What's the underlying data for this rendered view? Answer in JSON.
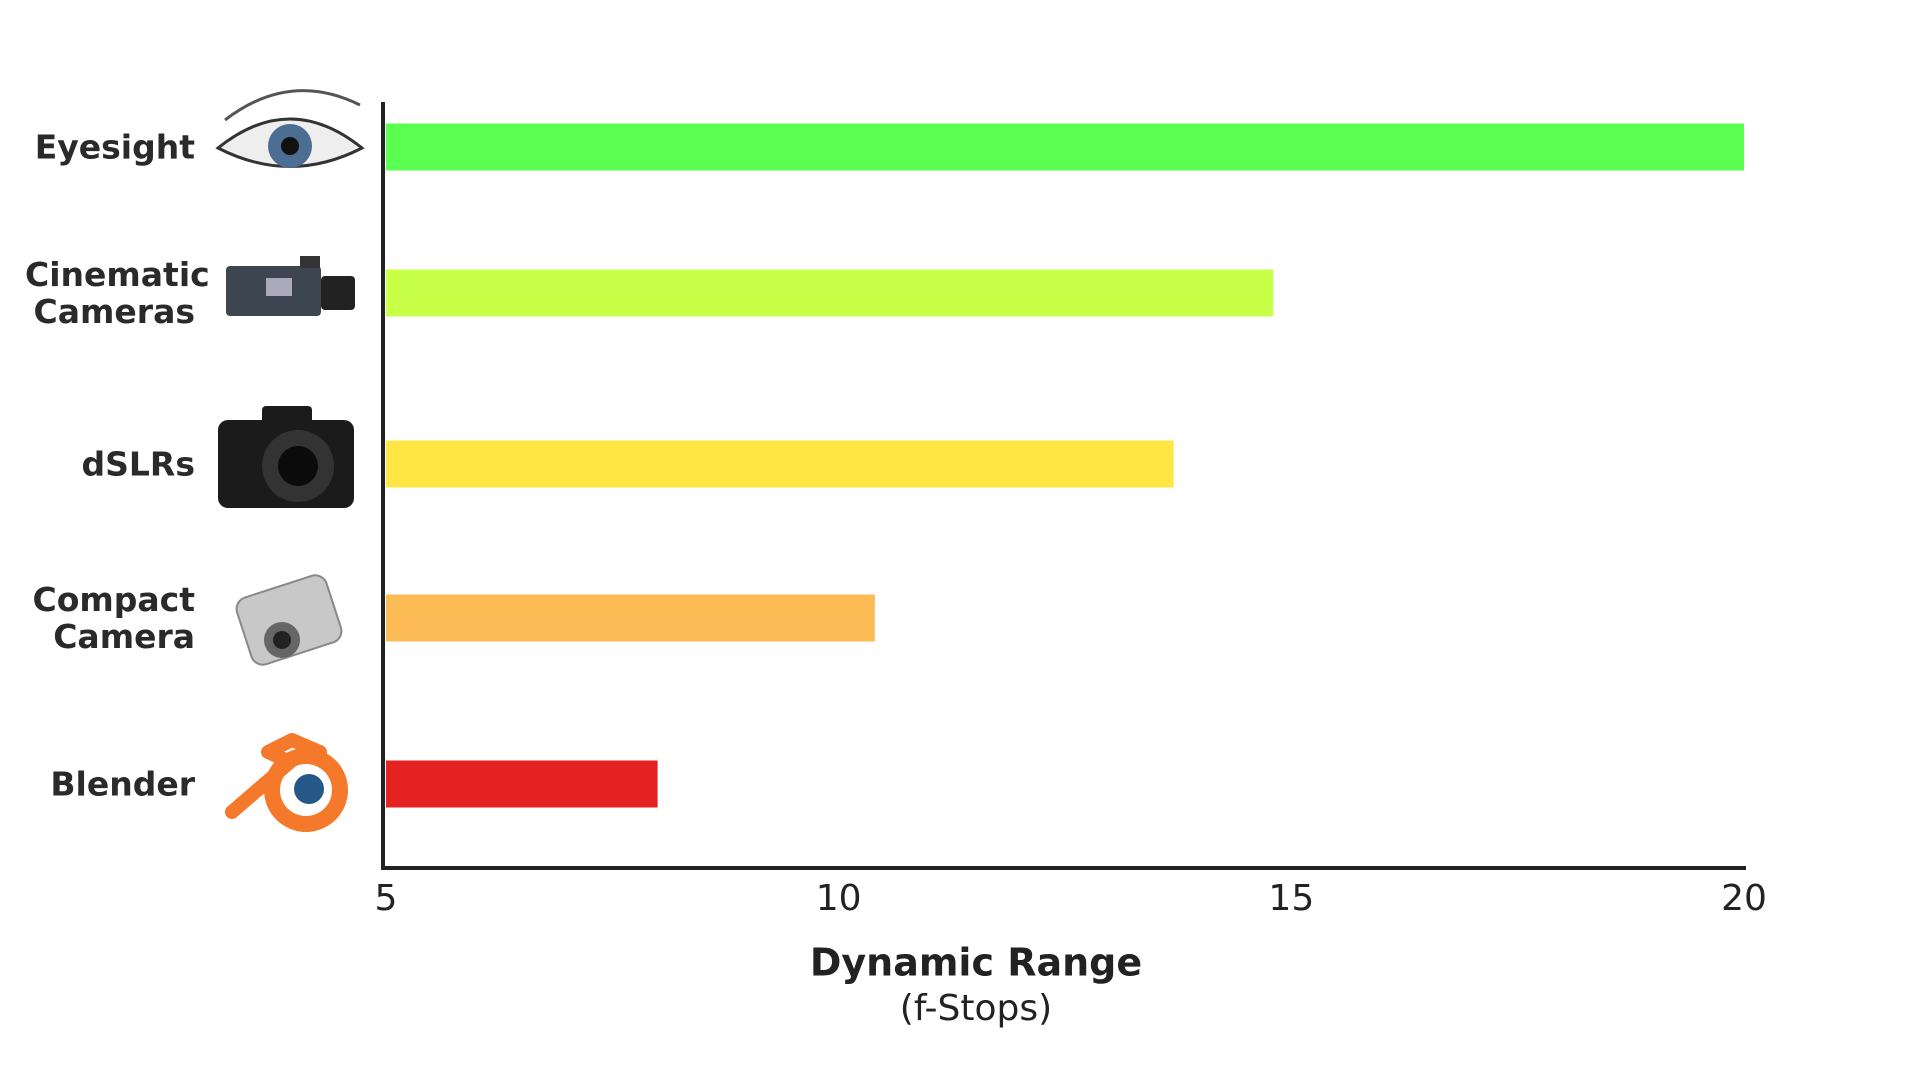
{
  "chart_data": {
    "type": "hbar",
    "categories": [
      "Eyesight",
      "Cinematic Cameras",
      "dSLRs",
      "Compact Camera",
      "Blender"
    ],
    "values": [
      20,
      14.8,
      13.7,
      10.4,
      8
    ],
    "colors": [
      "#5aff4f",
      "#c8ff47",
      "#ffe645",
      "#fdbb55",
      "#e52222"
    ],
    "xlim": [
      5,
      20
    ],
    "xticks": [
      5,
      10,
      15,
      20
    ],
    "xlabel": "Dynamic Range",
    "xlabel_sub": "(f-Stops)",
    "grid": false
  }
}
